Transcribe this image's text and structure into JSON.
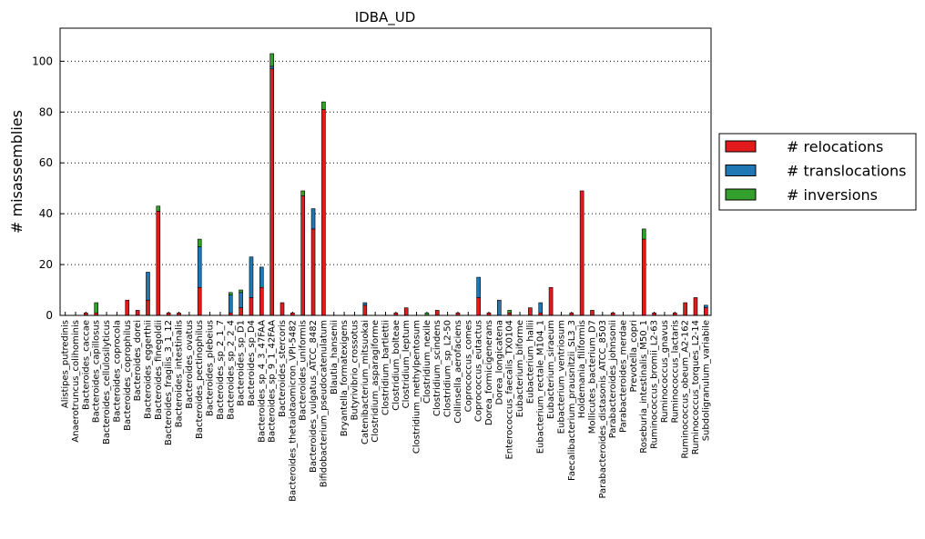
{
  "chart_data": {
    "type": "stacked_bar",
    "title": "IDBA_UD",
    "ylabel": "# misassemblies",
    "categories": [
      "Alistipes_putredinis",
      "Anaerotruncus_colihominis",
      "Bacteroides_caccae",
      "Bacteroides_capillosus",
      "Bacteroides_cellulosilyticus",
      "Bacteroides_coprocola",
      "Bacteroides_coprophilus",
      "Bacteroides_dorei",
      "Bacteroides_eggerthii",
      "Bacteroides_finegoldii",
      "Bacteroides_fragilis_3_1_12",
      "Bacteroides_intestinalis",
      "Bacteroides_ovatus",
      "Bacteroides_pectinophilus",
      "Bacteroides_plebeius",
      "Bacteroides_sp_2_1_7",
      "Bacteroides_sp_2_2_4",
      "Bacteroides_sp_D1",
      "Bacteroides_sp_D4",
      "Bacteroides_sp_4_3_47FAA",
      "Bacteroides_sp_9_1_42FAA",
      "Bacteroides_stercoris",
      "Bacteroides_thetaiotaomicron_VPI-5482",
      "Bacteroides_uniformis",
      "Bacteroides_vulgatus_ATCC_8482",
      "Bifidobacterium_pseudocatenulatum",
      "Blautia_hansenii",
      "Bryantella_formatexigens",
      "Butyrivibrio_crossotus",
      "Catenibacterium_mitsuokai",
      "Clostridium_asparagiforme",
      "Clostridium_bartlettii",
      "Clostridium_bolteae",
      "Clostridium_leptum",
      "Clostridium_methylpentosum",
      "Clostridium_nexile",
      "Clostridium_scindens",
      "Clostridium_sp_L2-50",
      "Collinsella_aerofaciens",
      "Coprococcus_comes",
      "Coprococcus_eutactus",
      "Dorea_formicigenerans",
      "Dorea_longicatena",
      "Enterococcus_faecalis_TX0104",
      "Eubacterium_biforme",
      "Eubacterium_hallii",
      "Eubacterium_rectale_M104_1",
      "Eubacterium_siraeum",
      "Eubacterium_ventriosum",
      "Faecalibacterium_prausnitzii_SL3_3",
      "Holdemania_filiformis",
      "Mollicutes_bacterium_D7",
      "Parabacteroides_distasonis_ATCC_8503",
      "Parabacteroides_johnsonii",
      "Parabacteroides_merdae",
      "Prevotella_copri",
      "Roseburia_intestinalis_M50_1",
      "Ruminococcus_bromii_L2-63",
      "Ruminococcus_gnavus",
      "Ruminococcus_lactaris",
      "Ruminococcus_obeum_A2-162",
      "Ruminococcus_torques_L2-14",
      "Subdoligranulum_variabile"
    ],
    "series": [
      {
        "name": "# relocations",
        "color": "#e31a1c",
        "values": [
          0,
          0,
          1,
          1,
          0,
          0,
          6,
          2,
          6,
          41,
          1,
          1,
          0,
          11,
          0,
          0,
          1,
          3,
          7,
          11,
          97,
          5,
          1,
          47,
          34,
          81,
          0,
          0,
          0,
          4,
          0,
          0,
          1,
          3,
          0,
          0,
          2,
          0,
          1,
          0,
          7,
          1,
          0,
          1,
          0,
          3,
          1,
          11,
          0,
          1,
          49,
          2,
          0,
          1,
          0,
          0,
          30,
          1,
          0,
          1,
          5,
          7,
          3
        ]
      },
      {
        "name": "# translocations",
        "color": "#1f78b4",
        "values": [
          0,
          0,
          0,
          0,
          0,
          0,
          0,
          0,
          11,
          0,
          0,
          0,
          0,
          16,
          0,
          0,
          7,
          6,
          16,
          8,
          1,
          0,
          0,
          0,
          8,
          0,
          0,
          0,
          0,
          1,
          0,
          0,
          0,
          0,
          0,
          0,
          0,
          0,
          0,
          0,
          8,
          0,
          6,
          0,
          0,
          0,
          4,
          0,
          0,
          0,
          0,
          0,
          0,
          0,
          0,
          0,
          0,
          0,
          0,
          0,
          0,
          0,
          1
        ]
      },
      {
        "name": "# inversions",
        "color": "#33a02c",
        "values": [
          0,
          0,
          0,
          4,
          0,
          0,
          0,
          0,
          0,
          2,
          0,
          0,
          0,
          3,
          0,
          0,
          1,
          1,
          0,
          0,
          5,
          0,
          0,
          2,
          0,
          3,
          0,
          0,
          0,
          0,
          0,
          0,
          0,
          0,
          0,
          1,
          0,
          0,
          0,
          0,
          0,
          0,
          0,
          1,
          0,
          0,
          0,
          0,
          0,
          0,
          0,
          0,
          0,
          0,
          0,
          0,
          4,
          0,
          0,
          0,
          0,
          0,
          0
        ]
      }
    ],
    "ylim": [
      0,
      113
    ],
    "yticks": [
      0,
      20,
      40,
      60,
      80,
      100
    ],
    "grid": true,
    "legend": "right"
  }
}
